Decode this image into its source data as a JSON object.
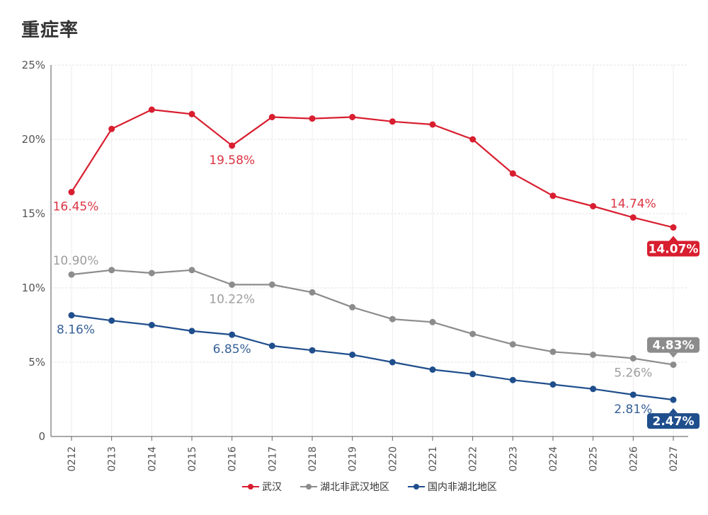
{
  "page_title": "重症率",
  "chart_data": {
    "type": "line",
    "title": "重症率",
    "xlabel": "",
    "ylabel": "",
    "ylim": [
      0,
      25
    ],
    "yticks": [
      0,
      5,
      10,
      15,
      20,
      25
    ],
    "ytick_labels": [
      "0",
      "5%",
      "10%",
      "15%",
      "20%",
      "25%"
    ],
    "categories": [
      "0212",
      "0213",
      "0214",
      "0215",
      "0216",
      "0217",
      "0218",
      "0219",
      "0220",
      "0221",
      "0222",
      "0223",
      "0224",
      "0225",
      "0226",
      "0227"
    ],
    "grid": true,
    "legend_position": "bottom",
    "series": [
      {
        "name": "武汉",
        "color": "#d81e2f",
        "values": [
          16.45,
          20.7,
          22.0,
          21.7,
          19.58,
          21.5,
          21.4,
          21.5,
          21.2,
          21.0,
          20.0,
          17.7,
          16.2,
          15.5,
          14.74,
          14.07
        ],
        "labels": [
          {
            "index": 0,
            "text": "16.45%",
            "pos": "below"
          },
          {
            "index": 4,
            "text": "19.58%",
            "pos": "below"
          },
          {
            "index": 14,
            "text": "14.74%",
            "pos": "above"
          }
        ],
        "badge": {
          "index": 15,
          "text": "14.07%"
        }
      },
      {
        "name": "湖北非武汉地区",
        "color": "#8c8c8c",
        "values": [
          10.9,
          11.2,
          11.0,
          11.2,
          10.22,
          10.22,
          9.7,
          8.7,
          7.9,
          7.7,
          6.9,
          6.2,
          5.7,
          5.5,
          5.26,
          4.83
        ],
        "labels": [
          {
            "index": 0,
            "text": "10.90%",
            "pos": "above"
          },
          {
            "index": 4,
            "text": "10.22%",
            "pos": "below"
          },
          {
            "index": 14,
            "text": "5.26%",
            "pos": "below"
          }
        ],
        "badge": {
          "index": 15,
          "text": "4.83%"
        }
      },
      {
        "name": "国内非湖北地区",
        "color": "#1f4e8c",
        "values": [
          8.16,
          7.8,
          7.5,
          7.1,
          6.85,
          6.1,
          5.8,
          5.5,
          5.0,
          4.5,
          4.2,
          3.8,
          3.5,
          3.2,
          2.81,
          2.47
        ],
        "labels": [
          {
            "index": 0,
            "text": "8.16%",
            "pos": "below"
          },
          {
            "index": 4,
            "text": "6.85%",
            "pos": "below"
          },
          {
            "index": 14,
            "text": "2.81%",
            "pos": "below"
          }
        ],
        "badge": {
          "index": 15,
          "text": "2.47%"
        }
      }
    ]
  }
}
